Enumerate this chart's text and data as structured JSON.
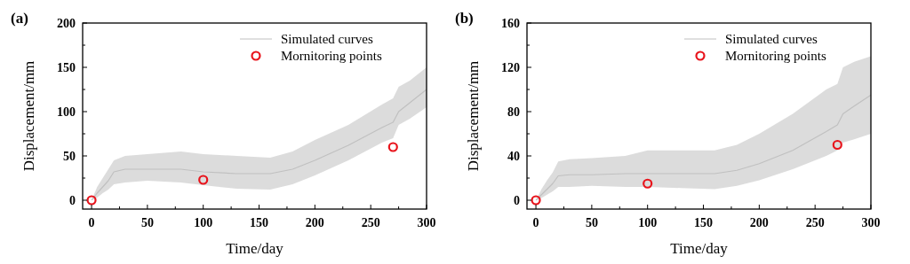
{
  "chart_data": [
    {
      "type": "line",
      "title": "(a)",
      "xlabel": "Time/day",
      "ylabel": "Displacement/mm",
      "xlim": [
        -8,
        300
      ],
      "xticks": [
        0,
        50,
        100,
        150,
        200,
        250,
        300
      ],
      "ylim": [
        -10,
        200
      ],
      "yticks": [
        0,
        50,
        100,
        150,
        200
      ],
      "legend": "top right",
      "grid": false,
      "series": [
        {
          "name": "Simulated curves",
          "color": "#c0c0c0",
          "marker": "none",
          "x": [
            0,
            5,
            10,
            15,
            20,
            30,
            50,
            80,
            100,
            130,
            160,
            180,
            200,
            230,
            260,
            270,
            275,
            285,
            300
          ],
          "values": [
            0,
            8,
            15,
            22,
            32,
            35,
            35,
            35,
            32,
            30,
            30,
            35,
            45,
            62,
            82,
            88,
            100,
            110,
            125
          ],
          "lower": [
            0,
            3,
            8,
            12,
            18,
            20,
            22,
            20,
            17,
            13,
            12,
            18,
            28,
            45,
            65,
            70,
            85,
            92,
            105
          ],
          "upper": [
            0,
            15,
            25,
            35,
            45,
            50,
            52,
            55,
            52,
            50,
            48,
            55,
            68,
            85,
            108,
            115,
            128,
            135,
            150
          ]
        },
        {
          "name": "Mornitoring points",
          "type": "scatter",
          "color": "#e8141c",
          "marker": "circle",
          "x": [
            0,
            100,
            270
          ],
          "values": [
            0,
            23,
            60
          ]
        }
      ]
    },
    {
      "type": "line",
      "title": "(b)",
      "xlabel": "Time/day",
      "ylabel": "Displacement/mm",
      "xlim": [
        -8,
        300
      ],
      "xticks": [
        0,
        50,
        100,
        150,
        200,
        250,
        300
      ],
      "ylim": [
        -8,
        160
      ],
      "yticks": [
        0,
        40,
        80,
        120,
        160
      ],
      "legend": "top right",
      "grid": false,
      "series": [
        {
          "name": "Simulated curves",
          "color": "#c0c0c0",
          "marker": "none",
          "x": [
            0,
            5,
            10,
            15,
            20,
            30,
            50,
            80,
            100,
            130,
            160,
            180,
            200,
            230,
            260,
            270,
            275,
            285,
            300
          ],
          "values": [
            0,
            5,
            10,
            15,
            22,
            23,
            23,
            24,
            24,
            24,
            24,
            27,
            33,
            45,
            62,
            68,
            78,
            85,
            95
          ],
          "lower": [
            0,
            2,
            5,
            8,
            12,
            12,
            13,
            12,
            12,
            11,
            10,
            13,
            18,
            28,
            40,
            45,
            52,
            55,
            60
          ],
          "upper": [
            0,
            10,
            18,
            25,
            35,
            37,
            38,
            40,
            45,
            45,
            45,
            50,
            60,
            78,
            100,
            105,
            120,
            125,
            130
          ]
        },
        {
          "name": "Mornitoring points",
          "type": "scatter",
          "color": "#e8141c",
          "marker": "circle",
          "x": [
            0,
            100,
            270
          ],
          "values": [
            0,
            15,
            50
          ]
        }
      ]
    }
  ]
}
